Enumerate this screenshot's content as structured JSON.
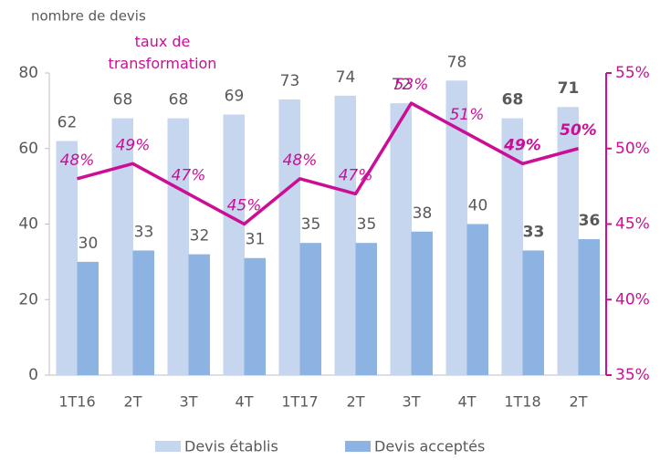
{
  "chart_data": {
    "type": "bar_line",
    "y_label": "nombre de devis",
    "categories": [
      "1T16",
      "2T",
      "3T",
      "4T",
      "1T17",
      "2T",
      "3T",
      "4T",
      "1T18",
      "2T"
    ],
    "series": [
      {
        "name": "Devis établis",
        "color": "#c6d6ef",
        "values": [
          62,
          68,
          68,
          69,
          73,
          74,
          72,
          78,
          68,
          71
        ]
      },
      {
        "name": "Devis acceptés",
        "color": "#8db3e2",
        "values": [
          30,
          33,
          32,
          31,
          35,
          35,
          38,
          40,
          33,
          36
        ]
      },
      {
        "name": "taux de transformation",
        "color": "#cc0e96",
        "axis": "y2",
        "type": "line",
        "values": [
          48,
          49,
          47,
          45,
          48,
          47,
          53,
          51,
          49,
          50
        ],
        "value_labels": [
          "48%",
          "49%",
          "47%",
          "45%",
          "48%",
          "47%",
          "53%",
          "51%",
          "49%",
          "50%"
        ]
      }
    ],
    "ylim": [
      0,
      80
    ],
    "yticks": [
      0,
      20,
      40,
      60,
      80
    ],
    "y2lim": [
      35,
      55
    ],
    "y2ticks": [
      {
        "value": 35,
        "label": "35%"
      },
      {
        "value": 40,
        "label": "40%"
      },
      {
        "value": 45,
        "label": "45%"
      },
      {
        "value": 50,
        "label": "50%"
      },
      {
        "value": 55,
        "label": "55%"
      }
    ],
    "legend": "bottom"
  }
}
